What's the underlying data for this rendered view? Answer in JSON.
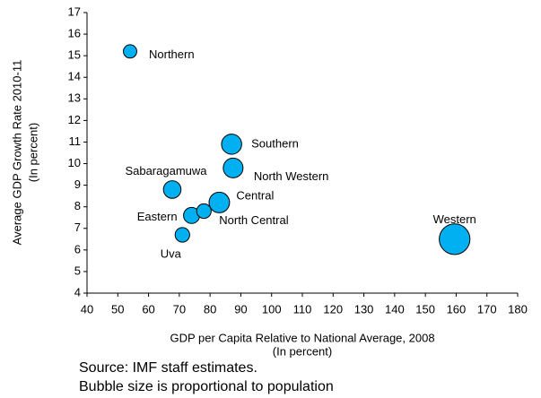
{
  "chart_data": {
    "type": "bubble",
    "x_label": "GDP per Capita Relative to National Average, 2008",
    "x_label_2": "(In percent)",
    "y_label": "Average GDP Growth Rate 2010-11",
    "y_label_2": "(In percent)",
    "notes": [
      "Source: IMF staff estimates.",
      "Bubble size is proportional to population"
    ],
    "color": "#00b0f0",
    "points": [
      "Northern",
      "Southern",
      "North Western",
      "Sabaragamuwa",
      "Central",
      "Eastern",
      "North Central",
      "Uva",
      "Western"
    ],
    "x": [
      54,
      87,
      87.5,
      67.7,
      83,
      74,
      78,
      71,
      159.5
    ],
    "values": [
      15.2,
      10.9,
      9.8,
      8.8,
      8.2,
      7.6,
      7.8,
      6.7,
      6.5
    ],
    "sizes": [
      1.1,
      2.5,
      2.4,
      1.9,
      2.6,
      1.6,
      1.3,
      1.3,
      5.8
    ],
    "xlim": [
      40,
      180
    ],
    "xticks": [
      40,
      50,
      60,
      70,
      80,
      90,
      100,
      110,
      120,
      130,
      140,
      150,
      160,
      170,
      180
    ],
    "ylim": [
      4,
      17
    ],
    "yticks": [
      4,
      5,
      6,
      7,
      8,
      9,
      10,
      11,
      12,
      13,
      14,
      15,
      16,
      17
    ],
    "grid": false
  }
}
